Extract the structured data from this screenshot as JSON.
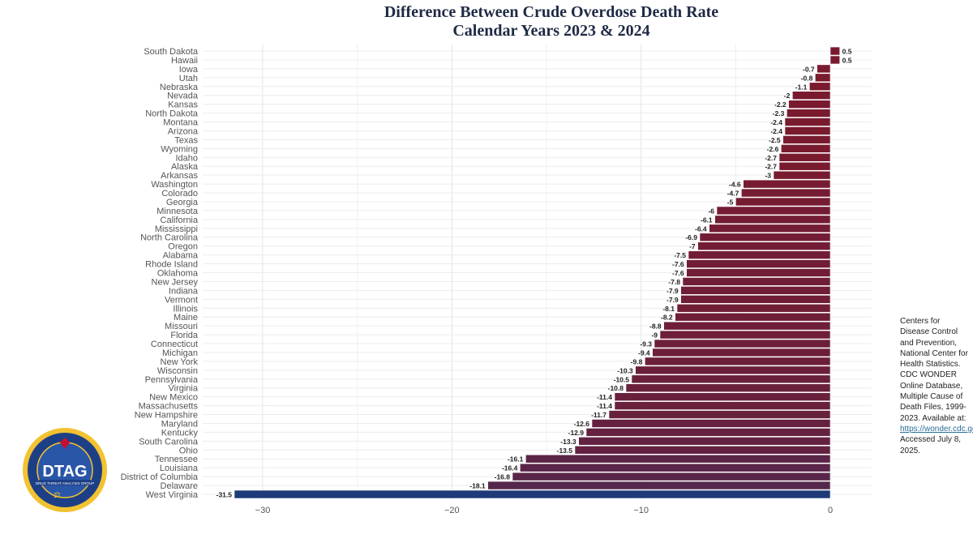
{
  "chart_data": {
    "type": "bar",
    "orientation": "horizontal",
    "title": "Difference Between Crude Overdose Death Rate",
    "subtitle": "Calendar Years 2023 & 2024",
    "categories": [
      "South Dakota",
      "Hawaii",
      "Iowa",
      "Utah",
      "Nebraska",
      "Nevada",
      "Kansas",
      "North Dakota",
      "Montana",
      "Arizona",
      "Texas",
      "Wyoming",
      "Idaho",
      "Alaska",
      "Arkansas",
      "Washington",
      "Colorado",
      "Georgia",
      "Minnesota",
      "California",
      "Mississippi",
      "North Carolina",
      "Oregon",
      "Alabama",
      "Rhode Island",
      "Oklahoma",
      "New Jersey",
      "Indiana",
      "Vermont",
      "Illinois",
      "Maine",
      "Missouri",
      "Florida",
      "Connecticut",
      "Michigan",
      "New York",
      "Wisconsin",
      "Pennsylvania",
      "Virginia",
      "New Mexico",
      "Massachusetts",
      "New Hampshire",
      "Maryland",
      "Kentucky",
      "South Carolina",
      "Ohio",
      "Tennessee",
      "Louisiana",
      "District of Columbia",
      "Delaware",
      "West Virginia"
    ],
    "values": [
      0.5,
      0.5,
      -0.7,
      -0.8,
      -1.1,
      -2,
      -2.2,
      -2.3,
      -2.4,
      -2.4,
      -2.5,
      -2.6,
      -2.7,
      -2.7,
      -3,
      -4.6,
      -4.7,
      -5,
      -6,
      -6.1,
      -6.4,
      -6.9,
      -7,
      -7.5,
      -7.6,
      -7.6,
      -7.8,
      -7.9,
      -7.9,
      -8.1,
      -8.2,
      -8.8,
      -9,
      -9.3,
      -9.4,
      -9.8,
      -10.3,
      -10.5,
      -10.8,
      -11.4,
      -11.4,
      -11.7,
      -12.6,
      -12.9,
      -13.3,
      -13.5,
      -16.1,
      -16.4,
      -16.8,
      -18.1,
      -31.5
    ],
    "xlim": [
      -33,
      1
    ],
    "xticks": [
      -30,
      -20,
      -10,
      0
    ],
    "grid": true,
    "xlabel": "",
    "ylabel": "",
    "colors": {
      "high": "#7a1a2e",
      "low": "#1f3a78"
    }
  },
  "source": {
    "text": "Centers for Disease Control and Prevention, National Center for Health Statistics. CDC WONDER Online Database, Multiple Cause of Death Files, 1999-2023. Available at: ",
    "link": "https://wonder.cdc.gov/mcd.html",
    "suffix": ". Accessed July 8, 2025."
  },
  "logo": {
    "text": "DTAG",
    "ring_text": "HIGH INTENSITY DRUG TRAFFICKING AREAS · NATIONAL STRATEGIC ANALYSIS INITIATIVE",
    "sub": "DRUG THREAT ANALYSIS GROUP"
  }
}
